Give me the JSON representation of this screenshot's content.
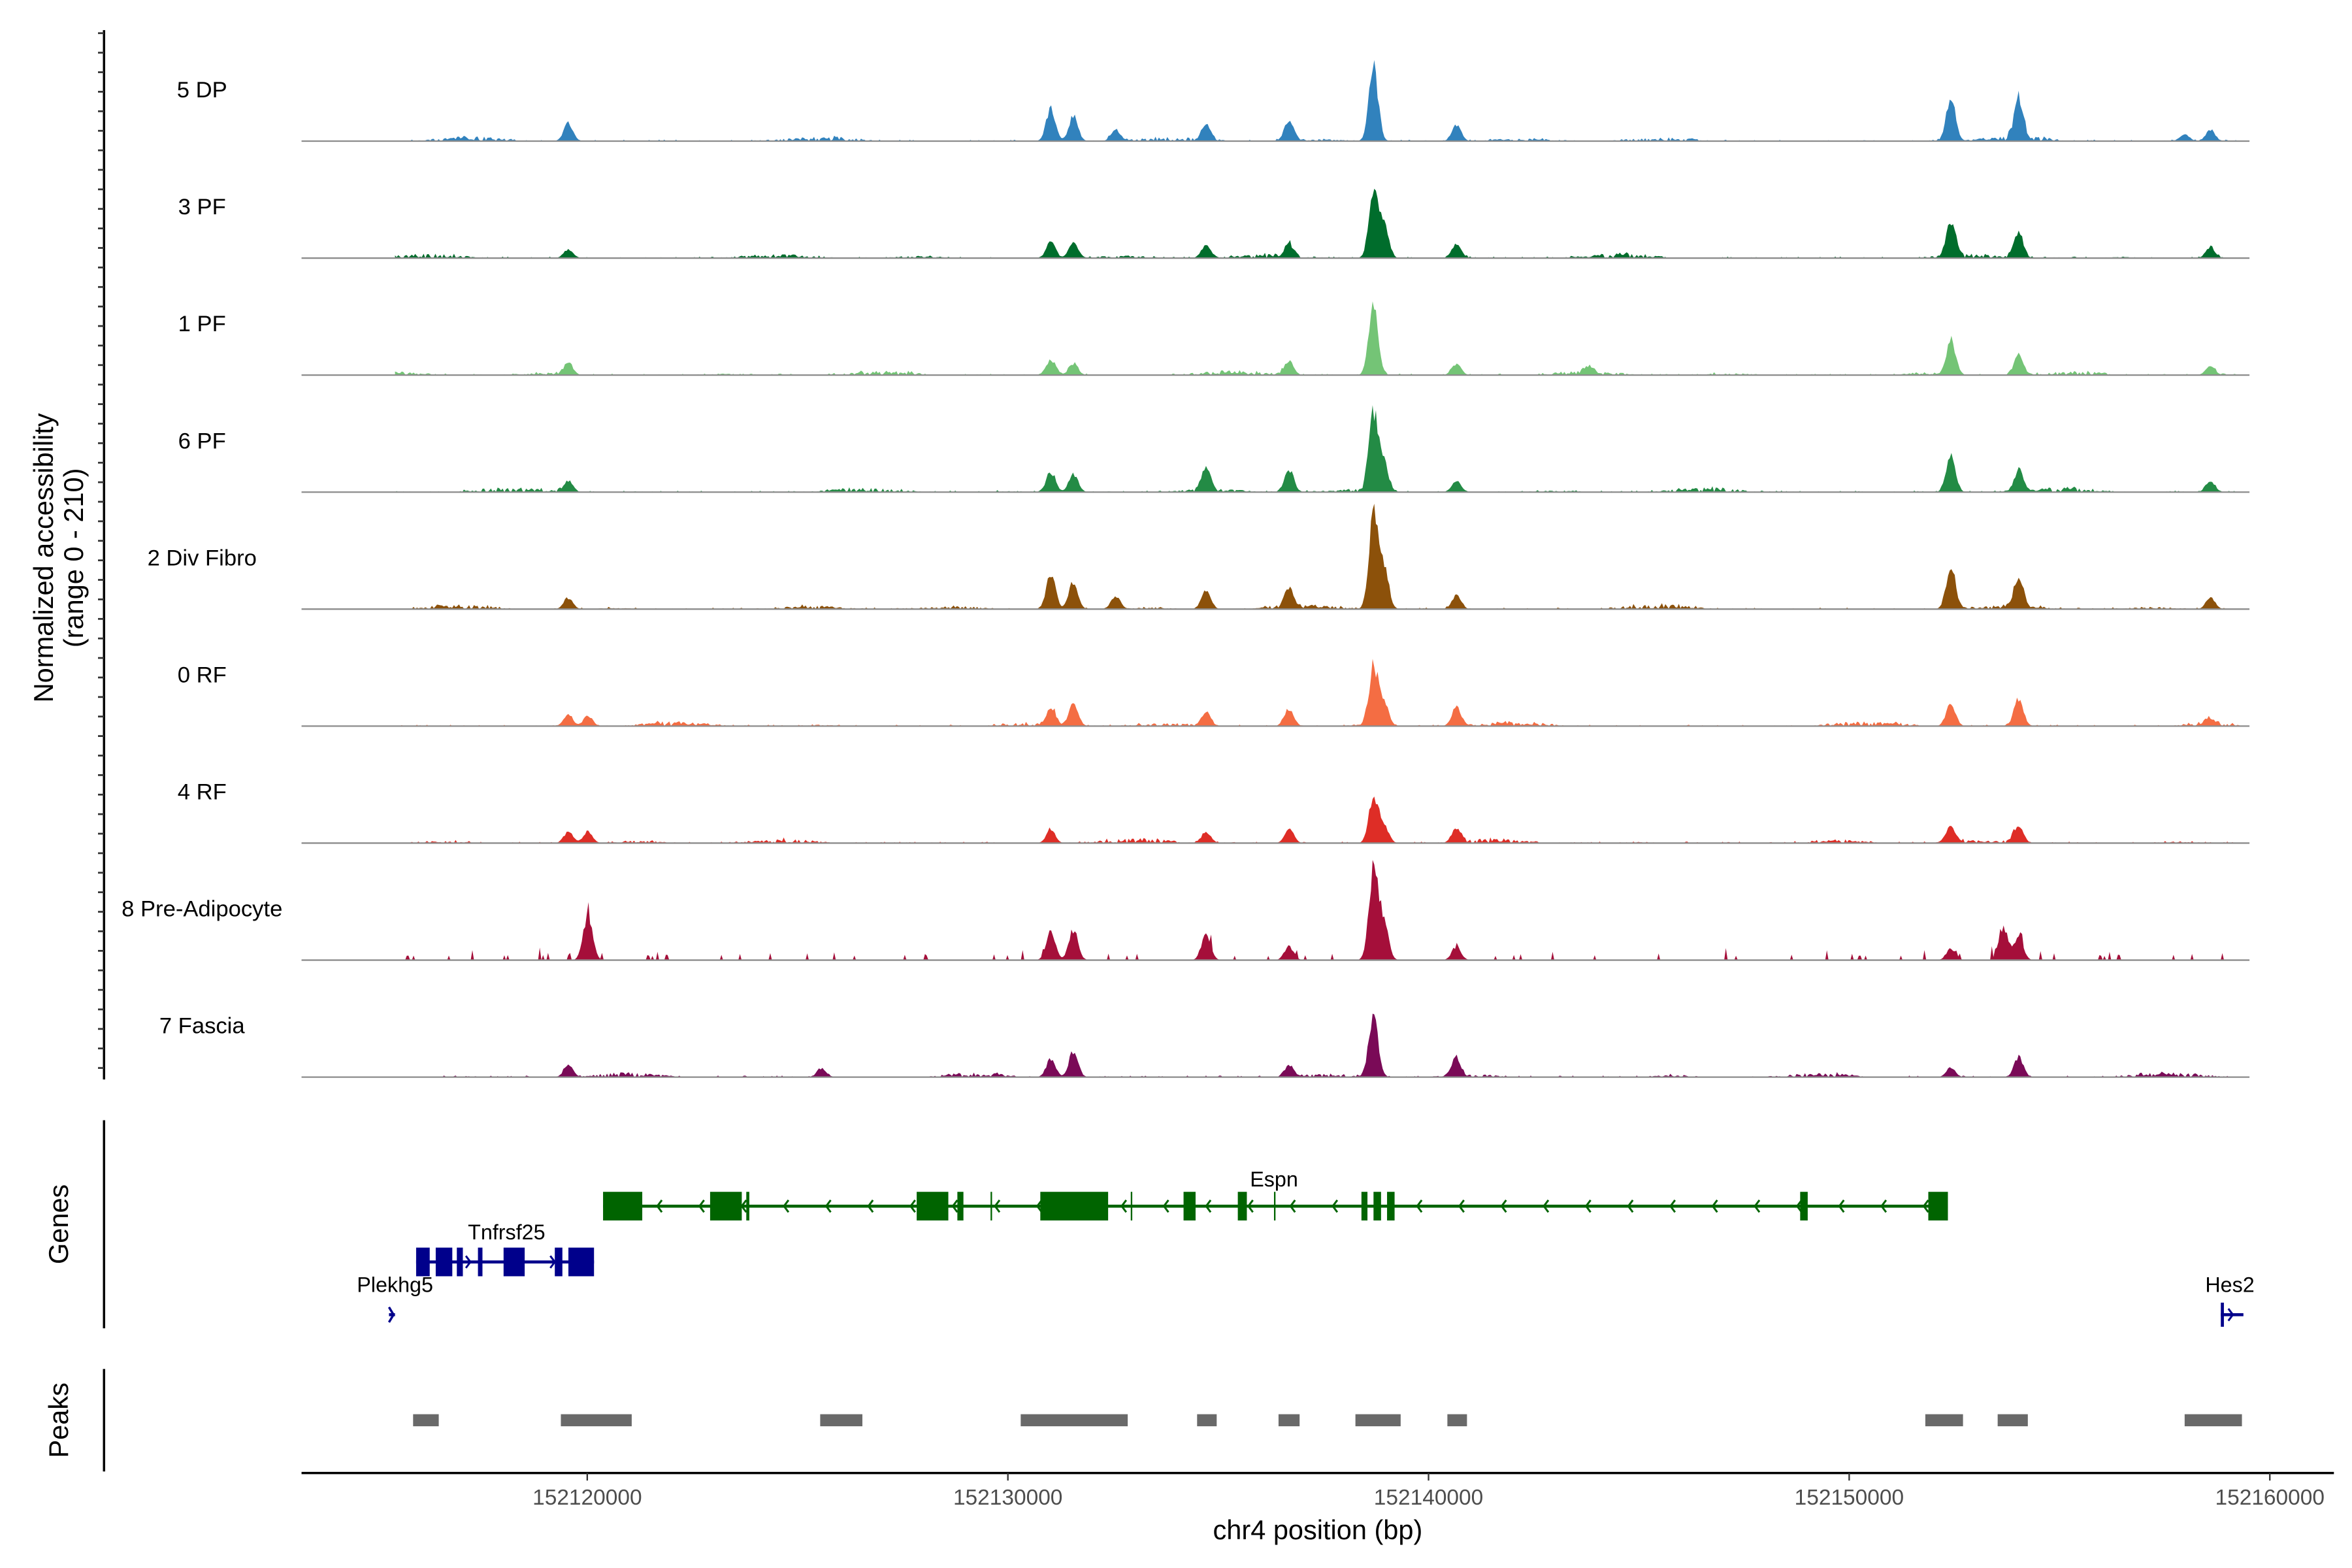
{
  "chart_data": {
    "type": "area",
    "title": "",
    "ylabel": "Normalized accessibility",
    "ylabel_range": "(range 0 - 210)",
    "ylim": [
      0,
      210
    ],
    "xlabel": "chr4 position (bp)",
    "xlim": [
      152113190,
      152161550
    ],
    "data_range": [
      152115412,
      152159290
    ],
    "xticks": [
      152120000,
      152130000,
      152140000,
      152150000,
      152160000
    ],
    "xtick_labels": [
      "152120000",
      "152130000",
      "152140000",
      "152150000",
      "152160000"
    ],
    "series": [
      {
        "name": "5 DP",
        "color": "#3182bd",
        "peaks": [
          [
            152119534,
            40
          ],
          [
            152131002,
            70
          ],
          [
            152131540,
            55
          ],
          [
            152132544,
            25
          ],
          [
            152134694,
            35
          ],
          [
            152136666,
            45
          ],
          [
            152138673,
            160
          ],
          [
            152140645,
            35
          ],
          [
            152152400,
            95
          ],
          [
            152154010,
            90
          ],
          [
            152157960,
            15
          ],
          [
            152158570,
            25
          ]
        ]
      },
      {
        "name": "3 PF",
        "color": "#006d2c",
        "peaks": [
          [
            152119534,
            20
          ],
          [
            152131002,
            35
          ],
          [
            152131540,
            35
          ],
          [
            152134694,
            30
          ],
          [
            152136666,
            30
          ],
          [
            152138673,
            145
          ],
          [
            152138924,
            70
          ],
          [
            152140645,
            30
          ],
          [
            152152400,
            75
          ],
          [
            152154010,
            55
          ],
          [
            152158570,
            25
          ]
        ]
      },
      {
        "name": "1 PF",
        "color": "#74c476",
        "peaks": [
          [
            152119534,
            25
          ],
          [
            152131002,
            35
          ],
          [
            152131540,
            25
          ],
          [
            152136666,
            30
          ],
          [
            152138673,
            160
          ],
          [
            152140645,
            25
          ],
          [
            152143800,
            15
          ],
          [
            152152400,
            75
          ],
          [
            152154010,
            45
          ],
          [
            152158570,
            20
          ]
        ]
      },
      {
        "name": "6 PF",
        "color": "#238b45",
        "peaks": [
          [
            152119534,
            25
          ],
          [
            152131002,
            45
          ],
          [
            152131540,
            40
          ],
          [
            152134694,
            50
          ],
          [
            152136666,
            50
          ],
          [
            152138673,
            170
          ],
          [
            152138924,
            60
          ],
          [
            152140645,
            25
          ],
          [
            152152400,
            80
          ],
          [
            152154010,
            45
          ],
          [
            152158570,
            25
          ]
        ]
      },
      {
        "name": "2 Div Fibro",
        "color": "#8c510a",
        "peaks": [
          [
            152119534,
            25
          ],
          [
            152131002,
            75
          ],
          [
            152131540,
            60
          ],
          [
            152132544,
            30
          ],
          [
            152134694,
            40
          ],
          [
            152136666,
            40
          ],
          [
            152138673,
            200
          ],
          [
            152138924,
            90
          ],
          [
            152140645,
            30
          ],
          [
            152152400,
            95
          ],
          [
            152154010,
            65
          ],
          [
            152158570,
            25
          ]
        ]
      },
      {
        "name": "0 RF",
        "color": "#f46d43",
        "peaks": [
          [
            152119534,
            25
          ],
          [
            152120000,
            22
          ],
          [
            152131002,
            40
          ],
          [
            152131540,
            45
          ],
          [
            152134694,
            30
          ],
          [
            152136666,
            40
          ],
          [
            152138673,
            130
          ],
          [
            152138924,
            50
          ],
          [
            152140645,
            40
          ],
          [
            152152400,
            50
          ],
          [
            152154010,
            60
          ],
          [
            152158570,
            15
          ]
        ]
      },
      {
        "name": "4 RF",
        "color": "#de2d26",
        "peaks": [
          [
            152119534,
            25
          ],
          [
            152120000,
            25
          ],
          [
            152131002,
            30
          ],
          [
            152134694,
            25
          ],
          [
            152136666,
            30
          ],
          [
            152138673,
            100
          ],
          [
            152138924,
            40
          ],
          [
            152140645,
            30
          ],
          [
            152152400,
            35
          ],
          [
            152154010,
            40
          ]
        ]
      },
      {
        "name": "8 Pre-Adipocyte",
        "color": "#a50f3a",
        "peaks": [
          [
            152120000,
            100
          ],
          [
            152131002,
            60
          ],
          [
            152131540,
            65
          ],
          [
            152134694,
            60
          ],
          [
            152136666,
            30
          ],
          [
            152138673,
            200
          ],
          [
            152138924,
            80
          ],
          [
            152140645,
            30
          ],
          [
            152152400,
            25
          ],
          [
            152153650,
            70
          ],
          [
            152154010,
            50
          ]
        ]
      },
      {
        "name": "7 Fascia",
        "color": "#7a0a57",
        "peaks": [
          [
            152119534,
            25
          ],
          [
            152125555,
            20
          ],
          [
            152131002,
            40
          ],
          [
            152131540,
            55
          ],
          [
            152136666,
            25
          ],
          [
            152138673,
            130
          ],
          [
            152140645,
            40
          ],
          [
            152152400,
            20
          ],
          [
            152154010,
            45
          ]
        ]
      }
    ],
    "genes_track_label": "Genes",
    "genes": [
      {
        "name": "Espn",
        "strand": "-",
        "color": "#006400",
        "start": 152120358,
        "end": 152152329,
        "exons": [
          [
            152120358,
            152121290
          ],
          [
            152122903,
            152123656
          ],
          [
            152123763,
            152123835
          ],
          [
            152127814,
            152128566
          ],
          [
            152128781,
            152128925
          ],
          [
            152129570,
            152129606
          ],
          [
            152130753,
            152132365
          ],
          [
            152132903,
            152132939
          ],
          [
            152134158,
            152134444
          ],
          [
            152135448,
            152135663
          ],
          [
            152136308,
            152136344
          ],
          [
            152138387,
            152138530
          ],
          [
            152138674,
            152138853
          ],
          [
            152138996,
            152139175
          ],
          [
            152148817,
            152148996
          ],
          [
            152151863,
            152152329
          ]
        ]
      },
      {
        "name": "Tnfrsf25",
        "strand": "+",
        "color": "#00008b",
        "start": 152115914,
        "end": 152120143,
        "exons": [
          [
            152115914,
            152116237
          ],
          [
            152116380,
            152116774
          ],
          [
            152116882,
            152117025
          ],
          [
            152117384,
            152117491
          ],
          [
            152117993,
            152118495
          ],
          [
            152119211,
            152119391
          ],
          [
            152119534,
            152120143
          ]
        ]
      },
      {
        "name": "Plekhg5",
        "strand": "+",
        "color": "#00008b",
        "start": 152115269,
        "end": 152115412,
        "exons": []
      },
      {
        "name": "Hes2",
        "strand": "+",
        "color": "#00008b",
        "start": 152158817,
        "end": 152159354,
        "exons": [
          [
            152158817,
            152158890
          ]
        ]
      }
    ],
    "peaks_track_label": "Peaks",
    "peaks_color": "#696969",
    "peaks": [
      [
        152115842,
        152116452
      ],
      [
        152119355,
        152121039
      ],
      [
        152125520,
        152126523
      ],
      [
        152130287,
        152132831
      ],
      [
        152134480,
        152134946
      ],
      [
        152136416,
        152136917
      ],
      [
        152138244,
        152139319
      ],
      [
        152140430,
        152140896
      ],
      [
        152151792,
        152152688
      ],
      [
        152153512,
        152154229
      ],
      [
        152157957,
        152159319
      ]
    ]
  }
}
